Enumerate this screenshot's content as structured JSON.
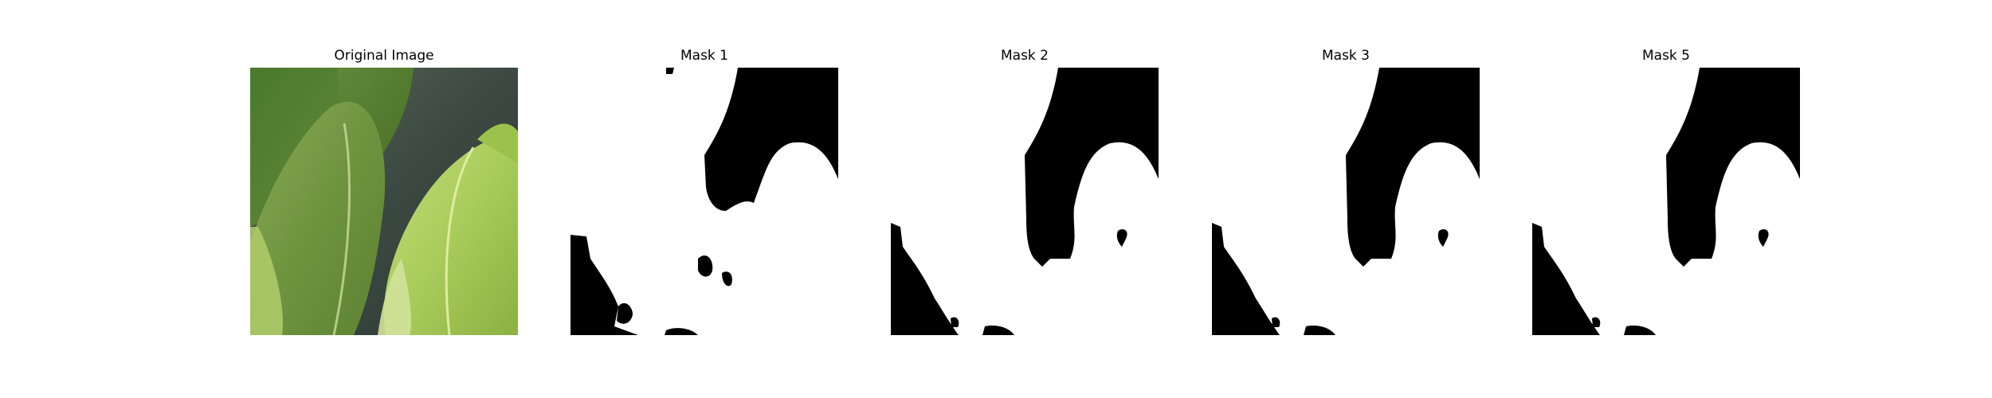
{
  "panels": [
    {
      "title": "Original Image",
      "kind": "photo"
    },
    {
      "title": "Mask 1",
      "kind": "mask"
    },
    {
      "title": "Mask 2",
      "kind": "mask"
    },
    {
      "title": "Mask 3",
      "kind": "mask"
    },
    {
      "title": "Mask 5",
      "kind": "mask"
    }
  ],
  "colors": {
    "mask_foreground": "#ffffff",
    "mask_background": "#000000",
    "leaf_dark": "#4a6e28",
    "leaf_light": "#c4dc78",
    "background_dark": "#3c4842"
  }
}
